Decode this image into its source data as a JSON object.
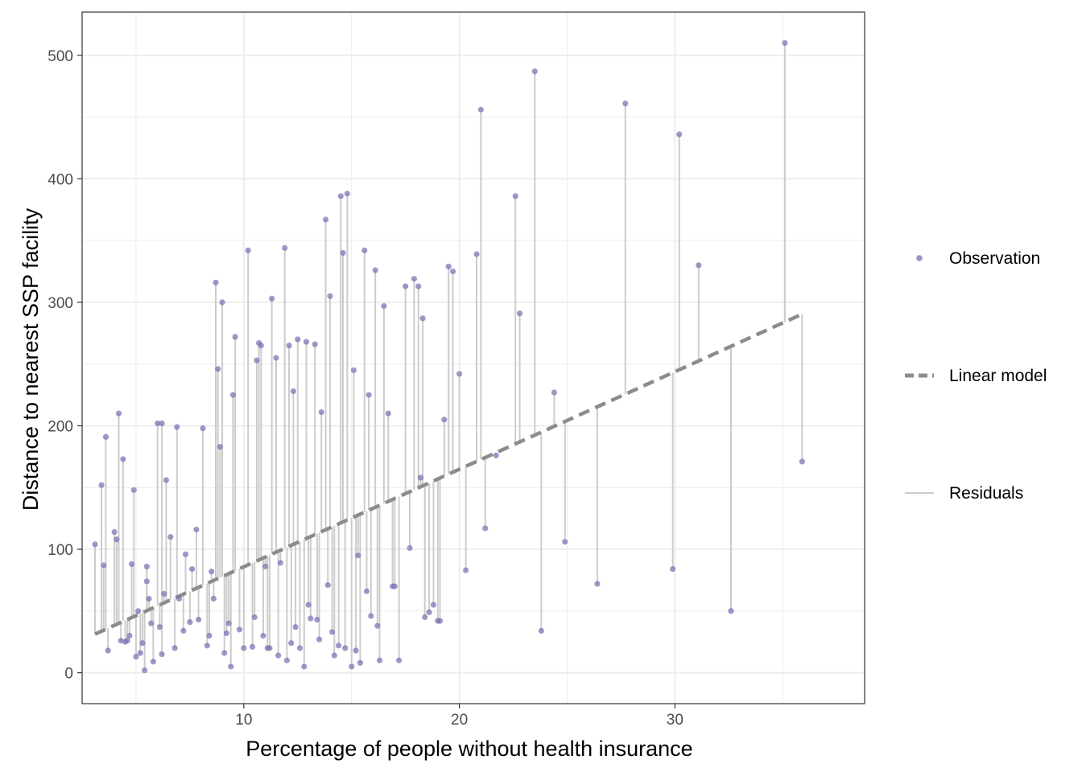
{
  "chart_data": {
    "type": "scatter",
    "title": "",
    "xlabel": "Percentage of people without health insurance",
    "ylabel": "Distance to nearest SSP facility",
    "xlim": [
      2.5,
      38.8
    ],
    "ylim": [
      -25,
      535
    ],
    "x_ticks": [
      10,
      20,
      30
    ],
    "y_ticks": [
      0,
      100,
      200,
      300,
      400,
      500
    ],
    "x_minor_ticks": [
      5,
      15,
      25,
      35
    ],
    "y_minor_ticks": [
      50,
      150,
      250,
      350,
      450
    ],
    "grid": true,
    "model": {
      "intercept": 6.8,
      "slope": 7.9,
      "x_range": [
        3.1,
        35.9
      ]
    },
    "legend": {
      "position": "right",
      "entries": [
        {
          "key": "observation",
          "label": "Observation"
        },
        {
          "key": "linear_model",
          "label": "Linear model"
        },
        {
          "key": "residuals",
          "label": "Residuals"
        }
      ]
    },
    "colors": {
      "point": "#7e6fb3",
      "line": "#8c8c8c",
      "residual": "#cccccc",
      "grid": "#ebebeb",
      "panel_border": "#333333"
    },
    "series": [
      {
        "name": "Observation",
        "x": [
          3.1,
          3.4,
          3.5,
          3.6,
          3.7,
          4.0,
          4.1,
          4.2,
          4.3,
          4.4,
          4.5,
          4.6,
          4.8,
          4.9,
          5.0,
          5.1,
          5.3,
          5.4,
          5.5,
          5.6,
          5.7,
          5.8,
          6.1,
          6.2,
          6.3,
          6.4,
          6.6,
          6.9,
          7.2,
          7.3,
          7.5,
          7.8,
          8.1,
          8.5,
          8.7,
          8.8,
          8.9,
          9.0,
          9.2,
          9.4,
          9.6,
          10.2,
          10.6,
          10.7,
          10.8,
          11.0,
          11.3,
          11.5,
          11.9,
          12.1,
          12.3,
          12.5,
          12.9,
          13.3,
          13.6,
          13.8,
          14.0,
          14.5,
          14.6,
          14.8,
          15.1,
          15.3,
          15.6,
          15.8,
          16.1,
          16.5,
          16.9,
          17.2,
          17.5,
          17.9,
          18.1,
          18.3,
          18.4,
          18.6,
          19.0,
          19.3,
          19.5,
          19.7,
          20.0,
          20.3,
          20.8,
          21.0,
          21.2,
          21.7,
          22.6,
          22.8,
          23.5,
          23.8,
          24.4,
          24.9,
          26.4,
          27.7,
          29.9,
          30.2,
          31.1,
          32.6,
          35.1,
          35.9,
          4.7,
          5.2,
          6.0,
          6.8,
          7.6,
          8.3,
          8.6,
          9.3,
          9.8,
          10.4,
          10.9,
          11.2,
          11.6,
          12.0,
          12.4,
          12.8,
          13.1,
          13.5,
          13.9,
          14.2,
          14.7,
          15.0,
          15.4,
          15.9,
          16.3,
          16.7,
          5.5,
          6.2,
          7.0,
          7.9,
          8.4,
          9.1,
          9.5,
          10.0,
          10.5,
          11.1,
          11.7,
          12.2,
          12.6,
          13.0,
          13.4,
          14.1,
          14.4,
          15.2,
          15.7,
          16.2,
          17.0,
          17.7,
          18.2,
          18.8,
          19.1
        ],
        "y": [
          104,
          152,
          87,
          191,
          18,
          114,
          108,
          210,
          26,
          173,
          25,
          26,
          88,
          148,
          13,
          50,
          24,
          2,
          74,
          60,
          40,
          9,
          37,
          202,
          64,
          156,
          110,
          199,
          34,
          96,
          41,
          116,
          198,
          82,
          316,
          246,
          183,
          300,
          32,
          5,
          272,
          342,
          253,
          267,
          265,
          86,
          303,
          255,
          344,
          265,
          228,
          270,
          268,
          266,
          211,
          367,
          305,
          386,
          340,
          388,
          245,
          95,
          342,
          225,
          326,
          297,
          70,
          10,
          313,
          319,
          313,
          287,
          45,
          49,
          42,
          205,
          329,
          325,
          242,
          83,
          339,
          456,
          117,
          176,
          386,
          291,
          487,
          34,
          227,
          106,
          72,
          461,
          84,
          436,
          330,
          50,
          510,
          171,
          30,
          16,
          202,
          20,
          84,
          22,
          60,
          40,
          35,
          21,
          30,
          20,
          14,
          10,
          37,
          5,
          44,
          27,
          71,
          14,
          20,
          5,
          8,
          46,
          10,
          210,
          86,
          15,
          60,
          43,
          30,
          16,
          225,
          20,
          45,
          20,
          89,
          24,
          20,
          55,
          43,
          33,
          22,
          18,
          66,
          38,
          70,
          101,
          158,
          55,
          42
        ]
      }
    ]
  }
}
